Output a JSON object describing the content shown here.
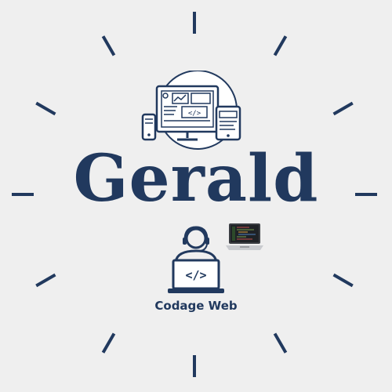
{
  "brand": {
    "name": "Gerald",
    "tagline": "Codage Web",
    "primary_color": "#21395e",
    "background_color": "#efefef"
  },
  "icons": {
    "top": "responsive-devices-icon",
    "center": "web-developer-icon",
    "side": "laptop-code-icon"
  },
  "decor": {
    "sunburst_rays": 12
  }
}
